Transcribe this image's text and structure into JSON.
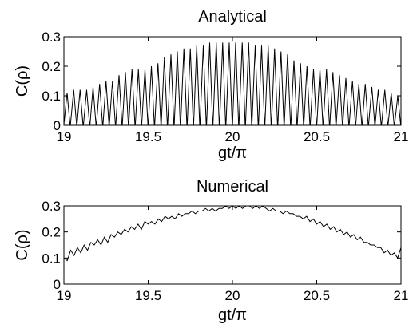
{
  "chart_data": [
    {
      "type": "line",
      "title": "Analytical",
      "xlabel": "gt/π",
      "ylabel": "C(ρ)",
      "xlim": [
        19,
        21
      ],
      "ylim": [
        0,
        0.3
      ],
      "xticks": [
        19,
        19.5,
        20,
        20.5,
        21
      ],
      "xtick_labels": [
        "19",
        "19.5",
        "20",
        "20.5",
        "21"
      ],
      "yticks": [
        0,
        0.1,
        0.2,
        0.3
      ],
      "ytick_labels": [
        "0",
        "0.1",
        "0.2",
        "0.3"
      ],
      "grid": false,
      "series": [
        {
          "style": "oscillating teeth: each tooth rises from 0 to its peak then falls back to 0",
          "peaks_x": [
            19.019,
            19.058,
            19.096,
            19.135,
            19.173,
            19.212,
            19.25,
            19.288,
            19.327,
            19.365,
            19.404,
            19.442,
            19.481,
            19.519,
            19.558,
            19.596,
            19.635,
            19.673,
            19.712,
            19.75,
            19.788,
            19.827,
            19.865,
            19.904,
            19.942,
            19.981,
            20.019,
            20.058,
            20.096,
            20.135,
            20.173,
            20.212,
            20.25,
            20.288,
            20.327,
            20.365,
            20.404,
            20.442,
            20.481,
            20.519,
            20.558,
            20.596,
            20.635,
            20.673,
            20.712,
            20.75,
            20.788,
            20.827,
            20.865,
            20.904,
            20.942,
            20.981
          ],
          "peaks_y": [
            0.11,
            0.12,
            0.12,
            0.12,
            0.13,
            0.14,
            0.15,
            0.15,
            0.17,
            0.18,
            0.19,
            0.19,
            0.19,
            0.2,
            0.21,
            0.23,
            0.24,
            0.25,
            0.26,
            0.26,
            0.27,
            0.27,
            0.28,
            0.28,
            0.28,
            0.28,
            0.28,
            0.28,
            0.28,
            0.27,
            0.27,
            0.27,
            0.26,
            0.25,
            0.24,
            0.22,
            0.21,
            0.2,
            0.19,
            0.19,
            0.19,
            0.18,
            0.17,
            0.16,
            0.15,
            0.14,
            0.14,
            0.13,
            0.12,
            0.12,
            0.11,
            0.1
          ]
        }
      ]
    },
    {
      "type": "line",
      "title": "Numerical",
      "xlabel": "gt/π",
      "ylabel": "C(ρ)",
      "xlim": [
        19,
        21
      ],
      "ylim": [
        0,
        0.3
      ],
      "xticks": [
        19,
        19.5,
        20,
        20.5,
        21
      ],
      "xtick_labels": [
        "19",
        "19.5",
        "20",
        "20.5",
        "21"
      ],
      "yticks": [
        0,
        0.1,
        0.2,
        0.3
      ],
      "ytick_labels": [
        "0",
        "0.1",
        "0.2",
        "0.3"
      ],
      "grid": false,
      "series": [
        {
          "x": [
            19.0,
            19.02,
            19.04,
            19.06,
            19.08,
            19.1,
            19.12,
            19.14,
            19.16,
            19.18,
            19.2,
            19.22,
            19.24,
            19.26,
            19.28,
            19.3,
            19.32,
            19.34,
            19.36,
            19.38,
            19.4,
            19.42,
            19.44,
            19.46,
            19.48,
            19.5,
            19.52,
            19.54,
            19.56,
            19.58,
            19.6,
            19.62,
            19.64,
            19.66,
            19.68,
            19.7,
            19.72,
            19.74,
            19.76,
            19.78,
            19.8,
            19.82,
            19.84,
            19.86,
            19.88,
            19.9,
            19.92,
            19.94,
            19.96,
            19.98,
            20.0,
            20.02,
            20.04,
            20.06,
            20.08,
            20.1,
            20.12,
            20.14,
            20.16,
            20.18,
            20.2,
            20.22,
            20.24,
            20.26,
            20.28,
            20.3,
            20.32,
            20.34,
            20.36,
            20.38,
            20.4,
            20.42,
            20.44,
            20.46,
            20.48,
            20.5,
            20.52,
            20.54,
            20.56,
            20.58,
            20.6,
            20.62,
            20.64,
            20.66,
            20.68,
            20.7,
            20.72,
            20.74,
            20.76,
            20.78,
            20.8,
            20.82,
            20.84,
            20.86,
            20.88,
            20.9,
            20.92,
            20.94,
            20.96,
            20.98,
            21.0
          ],
          "y": [
            0.1,
            0.09,
            0.13,
            0.11,
            0.14,
            0.12,
            0.15,
            0.13,
            0.16,
            0.15,
            0.17,
            0.15,
            0.18,
            0.16,
            0.19,
            0.18,
            0.2,
            0.19,
            0.21,
            0.2,
            0.22,
            0.21,
            0.23,
            0.21,
            0.24,
            0.23,
            0.24,
            0.23,
            0.25,
            0.24,
            0.26,
            0.25,
            0.26,
            0.25,
            0.27,
            0.26,
            0.27,
            0.27,
            0.28,
            0.27,
            0.28,
            0.28,
            0.29,
            0.28,
            0.29,
            0.28,
            0.29,
            0.29,
            0.3,
            0.29,
            0.3,
            0.29,
            0.3,
            0.29,
            0.3,
            0.3,
            0.29,
            0.3,
            0.29,
            0.3,
            0.29,
            0.28,
            0.29,
            0.28,
            0.28,
            0.27,
            0.28,
            0.27,
            0.27,
            0.26,
            0.26,
            0.25,
            0.26,
            0.24,
            0.25,
            0.23,
            0.24,
            0.22,
            0.23,
            0.21,
            0.22,
            0.2,
            0.21,
            0.19,
            0.2,
            0.18,
            0.19,
            0.17,
            0.18,
            0.16,
            0.16,
            0.15,
            0.15,
            0.14,
            0.14,
            0.12,
            0.13,
            0.11,
            0.12,
            0.1,
            0.14
          ]
        }
      ]
    }
  ]
}
